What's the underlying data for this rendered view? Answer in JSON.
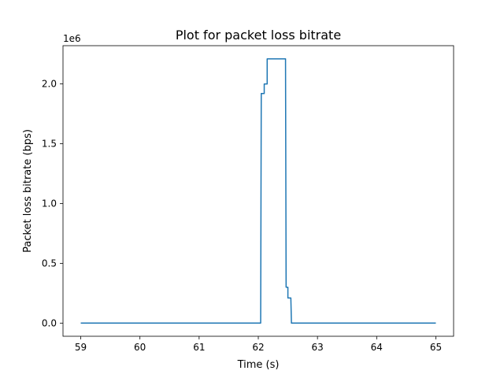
{
  "chart_data": {
    "type": "line",
    "title": "Plot for packet loss bitrate",
    "xlabel": "Time (s)",
    "ylabel": "Packet loss bitrate (bps)",
    "y_offset_label": "1e6",
    "y_scale_factor": 1000000,
    "xlim": [
      58.7,
      65.3
    ],
    "ylim": [
      -110000,
      2320000
    ],
    "x_ticks": [
      59,
      60,
      61,
      62,
      63,
      64,
      65
    ],
    "x_tick_labels": [
      "59",
      "60",
      "61",
      "62",
      "63",
      "64",
      "65"
    ],
    "y_ticks": [
      0,
      500000,
      1000000,
      1500000,
      2000000
    ],
    "y_tick_labels": [
      "0.0",
      "0.5",
      "1.0",
      "1.5",
      "2.0"
    ],
    "grid": false,
    "line_color": "#1f77b4",
    "series": [
      {
        "x": [
          59.0,
          62.04,
          62.05,
          62.1,
          62.1,
          62.15,
          62.15,
          62.2,
          62.2,
          62.46,
          62.47,
          62.5,
          62.5,
          62.55,
          62.56,
          65.0
        ],
        "y": [
          0,
          0,
          1920000,
          1920000,
          2000000,
          2000000,
          2210000,
          2210000,
          2210000,
          2210000,
          300000,
          300000,
          210000,
          210000,
          0,
          0
        ]
      }
    ]
  }
}
